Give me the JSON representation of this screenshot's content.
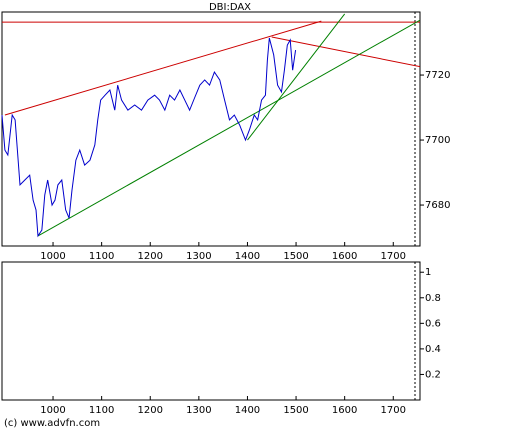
{
  "chart_data": [
    {
      "type": "line",
      "title": "DBI:DAX",
      "xlim": [
        895,
        1755
      ],
      "ylim": [
        7667.4,
        7739.4
      ],
      "xticks": [
        1000,
        1100,
        1200,
        1300,
        1400,
        1500,
        1600,
        1700
      ],
      "yticks": [
        7680,
        7700,
        7720
      ],
      "series": [
        {
          "color": "#0000cc",
          "x": [
            895,
            901,
            907,
            916,
            922,
            932,
            942,
            952,
            959,
            965,
            969,
            977,
            983,
            989,
            998,
            1004,
            1010,
            1018,
            1026,
            1033,
            1039,
            1047,
            1055,
            1065,
            1076,
            1086,
            1092,
            1098,
            1107,
            1117,
            1127,
            1133,
            1141,
            1154,
            1168,
            1182,
            1195,
            1209,
            1219,
            1230,
            1240,
            1250,
            1261,
            1271,
            1281,
            1291,
            1302,
            1312,
            1322,
            1332,
            1343,
            1353,
            1363,
            1373,
            1384,
            1396,
            1404,
            1414,
            1421,
            1429,
            1437,
            1441,
            1445,
            1454,
            1462,
            1470,
            1476,
            1482,
            1488,
            1493,
            1499
          ],
          "values": [
            7707.7,
            7696.9,
            7695.4,
            7707.7,
            7706.2,
            7686.2,
            7687.7,
            7689.2,
            7681.5,
            7678.5,
            7670.5,
            7672.3,
            7683.1,
            7687.7,
            7680.0,
            7681.5,
            7686.2,
            7687.7,
            7678.5,
            7676.0,
            7684.6,
            7693.8,
            7696.9,
            7692.3,
            7693.8,
            7698.5,
            7706.2,
            7712.3,
            7713.8,
            7715.4,
            7709.2,
            7716.9,
            7712.3,
            7709.2,
            7710.8,
            7709.2,
            7712.3,
            7713.8,
            7712.3,
            7709.2,
            7713.8,
            7712.3,
            7715.4,
            7712.3,
            7709.2,
            7712.9,
            7716.9,
            7718.5,
            7716.9,
            7720.9,
            7718.5,
            7712.3,
            7706.2,
            7707.7,
            7704.6,
            7700.0,
            7703.1,
            7707.7,
            7706.2,
            7712.3,
            7713.8,
            7724.6,
            7731.4,
            7726.2,
            7716.9,
            7714.8,
            7721.5,
            7729.2,
            7730.8,
            7721.5,
            7727.7
          ]
        }
      ],
      "trendlines": [
        {
          "color": "#cc0000",
          "x": [
            895,
            1755
          ],
          "values": [
            7736.3,
            7736.3
          ]
        },
        {
          "color": "#cc0000",
          "x": [
            901,
            1552
          ],
          "values": [
            7707.7,
            7736.6
          ]
        },
        {
          "color": "#cc0000",
          "x": [
            1450,
            1758
          ],
          "values": [
            7731.7,
            7722.5
          ]
        },
        {
          "color": "#008000",
          "x": [
            969,
            1755
          ],
          "values": [
            7670.5,
            7736.9
          ]
        },
        {
          "color": "#008000",
          "x": [
            1400,
            1600
          ],
          "values": [
            7700.0,
            7738.8
          ]
        }
      ]
    },
    {
      "type": "line",
      "xlim": [
        895,
        1755
      ],
      "ylim": [
        0,
        1.08
      ],
      "xticks": [
        1000,
        1100,
        1200,
        1300,
        1400,
        1500,
        1600,
        1700
      ],
      "yticks": [
        0.2,
        0.4,
        0.6,
        0.8,
        1
      ],
      "series": []
    }
  ],
  "footer": "(c) www.advfn.com"
}
